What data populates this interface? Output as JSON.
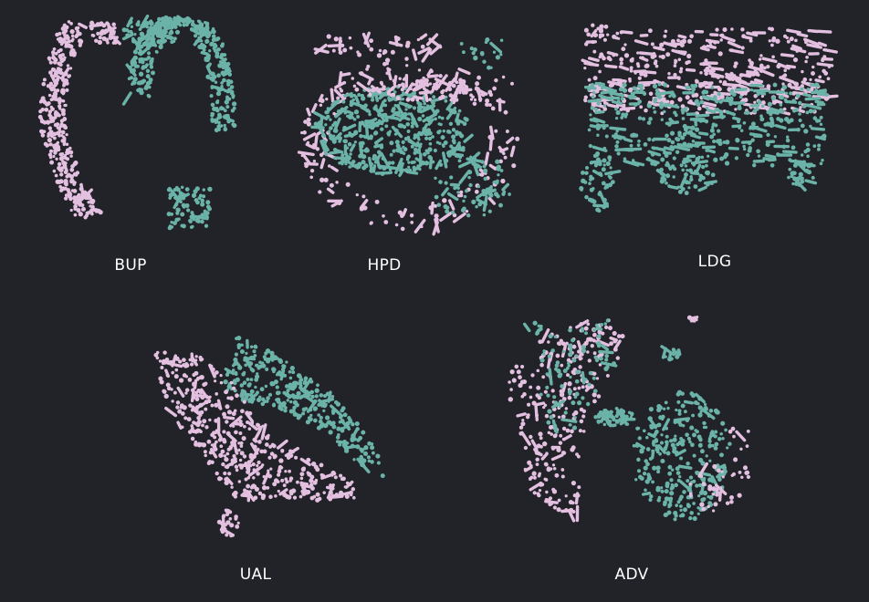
{
  "colors": {
    "background": "#212328",
    "pink": "#e3bfe0",
    "teal": "#6bb3a8",
    "label": "#ffffff"
  },
  "chart_data": [
    {
      "type": "scatter",
      "title": "BUP",
      "shape": "arc",
      "series": [
        {
          "color": "pink"
        },
        {
          "color": "teal"
        }
      ]
    },
    {
      "type": "scatter",
      "title": "HPD",
      "shape": "ring-with-core",
      "series": [
        {
          "color": "pink"
        },
        {
          "color": "teal"
        }
      ]
    },
    {
      "type": "scatter",
      "title": "LDG",
      "shape": "block-with-legs",
      "series": [
        {
          "color": "pink"
        },
        {
          "color": "teal"
        }
      ]
    },
    {
      "type": "scatter",
      "title": "UAL",
      "shape": "wedge",
      "series": [
        {
          "color": "pink"
        },
        {
          "color": "teal"
        }
      ]
    },
    {
      "type": "scatter",
      "title": "ADV",
      "shape": "fragmented-clusters",
      "series": [
        {
          "color": "pink"
        },
        {
          "color": "teal"
        }
      ]
    }
  ]
}
